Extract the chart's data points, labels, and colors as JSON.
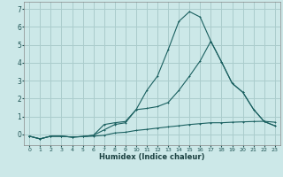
{
  "title": "",
  "xlabel": "Humidex (Indice chaleur)",
  "background_color": "#cce8e8",
  "grid_color": "#aacccc",
  "line_color": "#1a6060",
  "xlim": [
    -0.5,
    23.5
  ],
  "ylim": [
    -0.6,
    7.4
  ],
  "yticks": [
    0,
    1,
    2,
    3,
    4,
    5,
    6,
    7
  ],
  "xticks": [
    0,
    1,
    2,
    3,
    4,
    5,
    6,
    7,
    8,
    9,
    10,
    11,
    12,
    13,
    14,
    15,
    16,
    17,
    18,
    19,
    20,
    21,
    22,
    23
  ],
  "series1_x": [
    0,
    1,
    2,
    3,
    4,
    5,
    6,
    7,
    8,
    9,
    10,
    11,
    12,
    13,
    14,
    15,
    16,
    17,
    18,
    19,
    20,
    21,
    22,
    23
  ],
  "series1_y": [
    -0.1,
    -0.25,
    -0.1,
    -0.1,
    -0.15,
    -0.12,
    -0.1,
    -0.05,
    0.08,
    0.12,
    0.22,
    0.28,
    0.35,
    0.42,
    0.48,
    0.55,
    0.6,
    0.65,
    0.65,
    0.68,
    0.7,
    0.72,
    0.73,
    0.68
  ],
  "series2_x": [
    0,
    1,
    2,
    3,
    4,
    5,
    6,
    7,
    8,
    9,
    10,
    11,
    12,
    13,
    14,
    15,
    16,
    17,
    18,
    19,
    20,
    21,
    22,
    23
  ],
  "series2_y": [
    -0.1,
    -0.25,
    -0.1,
    -0.1,
    -0.15,
    -0.12,
    -0.05,
    0.55,
    0.65,
    0.72,
    1.38,
    1.45,
    1.55,
    1.78,
    2.45,
    3.25,
    4.1,
    5.2,
    4.05,
    2.85,
    2.35,
    1.4,
    0.72,
    0.48
  ],
  "series3_x": [
    0,
    1,
    2,
    3,
    4,
    5,
    6,
    7,
    8,
    9,
    10,
    11,
    12,
    13,
    14,
    15,
    16,
    17,
    18,
    19,
    20,
    21,
    22,
    23
  ],
  "series3_y": [
    -0.1,
    -0.25,
    -0.1,
    -0.1,
    -0.15,
    -0.12,
    -0.05,
    0.25,
    0.55,
    0.65,
    1.38,
    2.45,
    3.25,
    4.72,
    6.3,
    6.85,
    6.55,
    5.2,
    4.05,
    2.85,
    2.35,
    1.4,
    0.72,
    0.48
  ]
}
